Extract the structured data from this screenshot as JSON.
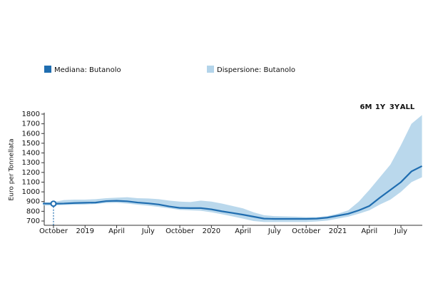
{
  "chart_data": {
    "type": "line",
    "y_label": "Euro per Tonnellata",
    "range_buttons": [
      "6M",
      "1Y",
      "3Y",
      "ALL"
    ],
    "categories": [
      null,
      "October",
      null,
      null,
      "2019",
      null,
      null,
      "April",
      null,
      null,
      "July",
      null,
      null,
      "October",
      null,
      null,
      "2020",
      null,
      null,
      "April",
      null,
      null,
      "July",
      null,
      null,
      "October",
      null,
      null,
      "2021",
      null,
      null,
      "April",
      null,
      null,
      "July",
      null,
      null
    ],
    "series": [
      {
        "name": "Mediana: Butanolo",
        "color": "#1f6db0",
        "values": [
          880,
          878,
          880,
          885,
          888,
          890,
          905,
          908,
          903,
          890,
          882,
          870,
          850,
          835,
          833,
          833,
          820,
          800,
          783,
          765,
          745,
          725,
          722,
          722,
          722,
          722,
          725,
          735,
          755,
          775,
          810,
          855,
          940,
          1020,
          1100,
          1210,
          1265
        ]
      },
      {
        "name": "Dispersione: Butanolo",
        "color": "#b3d4ea",
        "high": [
          890,
          895,
          915,
          920,
          920,
          925,
          935,
          940,
          945,
          935,
          932,
          925,
          910,
          900,
          895,
          910,
          900,
          880,
          855,
          830,
          790,
          760,
          750,
          748,
          745,
          740,
          740,
          750,
          775,
          810,
          900,
          1020,
          1150,
          1280,
          1480,
          1700,
          1790
        ],
        "low": [
          860,
          860,
          865,
          868,
          870,
          875,
          885,
          888,
          880,
          868,
          858,
          845,
          830,
          815,
          810,
          805,
          790,
          770,
          748,
          725,
          700,
          690,
          690,
          690,
          690,
          690,
          695,
          705,
          725,
          745,
          775,
          810,
          870,
          920,
          1000,
          1100,
          1150
        ]
      }
    ],
    "ylim": [
      655,
      1800
    ],
    "yticks": [
      700,
      800,
      900,
      1000,
      1100,
      1200,
      1300,
      1400,
      1500,
      1600,
      1700,
      1800
    ],
    "highlight_index": 1
  }
}
